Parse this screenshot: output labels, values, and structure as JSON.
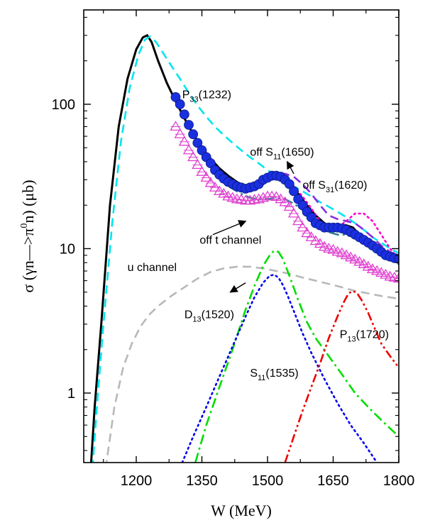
{
  "chart_data": {
    "type": "line",
    "xlabel": "W (MeV)",
    "ylabel_parts": [
      "σ (γn",
      "—>π",
      "0",
      "n) (μb)"
    ],
    "xlim": [
      1080,
      1800
    ],
    "ylim": [
      0.33,
      450
    ],
    "yscale": "log",
    "xticks": [
      1200,
      1350,
      1500,
      1650,
      1800
    ],
    "xtick_labels": [
      "1200",
      "1350",
      "1500",
      "1650",
      "1800"
    ],
    "yticks": [
      1,
      10,
      100
    ],
    "ytick_labels": [
      "1",
      "10",
      "100"
    ],
    "grid": false,
    "legend": "none",
    "colors": {
      "full": "#000000",
      "p33": "#00e5ee",
      "off_s11_1650": "#8a2be2",
      "off_s31_1620": "#ff00cc",
      "off_t": "#3a7f9a",
      "u_channel": "#b8b8b8",
      "d13": "#00dd00",
      "s11_1535": "#0000ee",
      "p13": "#ee0000",
      "data_circles": "#1a2fe0",
      "data_triangles": "#e040d0"
    },
    "series": [
      {
        "key": "full",
        "style": "solid",
        "x": [
          1096,
          1105,
          1120,
          1140,
          1160,
          1180,
          1200,
          1215,
          1225,
          1235,
          1250,
          1270,
          1290,
          1310,
          1330,
          1350,
          1370,
          1390,
          1410,
          1430,
          1450,
          1470,
          1480,
          1490,
          1500,
          1510,
          1520,
          1530,
          1540,
          1555,
          1570,
          1590,
          1610,
          1630,
          1650,
          1665,
          1680,
          1695,
          1710,
          1730,
          1750,
          1770,
          1800
        ],
        "y": [
          0.3,
          0.8,
          3,
          20,
          70,
          150,
          240,
          290,
          300,
          270,
          200,
          140,
          105,
          80,
          62,
          50,
          42,
          36,
          32,
          29,
          27,
          26,
          26.5,
          28,
          30,
          32,
          33,
          32.5,
          31,
          28,
          24,
          20,
          17,
          15,
          14,
          14.5,
          14.5,
          14,
          12.5,
          11,
          10,
          9.2,
          8.7
        ]
      },
      {
        "key": "p33",
        "style": "dashed",
        "x": [
          1100,
          1110,
          1125,
          1145,
          1165,
          1185,
          1205,
          1220,
          1232,
          1245,
          1260,
          1280,
          1300,
          1320,
          1340,
          1360,
          1380,
          1400,
          1420,
          1440,
          1460,
          1480,
          1500,
          1520,
          1540,
          1560,
          1580,
          1600,
          1620,
          1640,
          1660,
          1680,
          1700,
          1720,
          1740,
          1760,
          1780,
          1800
        ],
        "y": [
          0.3,
          0.8,
          3,
          15,
          55,
          130,
          220,
          280,
          295,
          270,
          230,
          185,
          150,
          120,
          98,
          82,
          70,
          61,
          54,
          48,
          43,
          39,
          35,
          32,
          29.5,
          27,
          25,
          23,
          21,
          19.5,
          18,
          16.5,
          15,
          13.5,
          12,
          11,
          10,
          9.3
        ]
      },
      {
        "key": "off_s11_1650",
        "style": "dashed",
        "x": [
          1480,
          1500,
          1520,
          1540,
          1560,
          1580,
          1600,
          1620,
          1640,
          1660,
          1680,
          1700,
          1720,
          1740,
          1760,
          1780,
          1800
        ],
        "y": [
          26.5,
          30,
          33,
          33,
          31.5,
          28,
          24,
          20,
          17,
          16,
          15.5,
          15,
          13.5,
          12,
          10.5,
          9.5,
          8.8
        ]
      },
      {
        "key": "off_s31_1620",
        "style": "dotted",
        "x": [
          1560,
          1580,
          1600,
          1620,
          1640,
          1660,
          1680,
          1700,
          1720,
          1740,
          1760,
          1780,
          1800
        ],
        "y": [
          27,
          23,
          19,
          15.5,
          14,
          14,
          15.5,
          17.5,
          17.5,
          15.5,
          12.5,
          10,
          8.5
        ]
      },
      {
        "key": "off_t",
        "style": "dashdot",
        "x": [
          1380,
          1400,
          1420,
          1440,
          1460,
          1480,
          1500,
          1520,
          1540,
          1560,
          1580,
          1600,
          1620,
          1640,
          1660,
          1680,
          1700,
          1720,
          1740,
          1760,
          1780,
          1800
        ],
        "y": [
          33,
          29,
          26,
          24,
          22.5,
          22,
          22,
          22.5,
          22,
          20.5,
          18.5,
          16,
          14,
          13,
          12.5,
          12.5,
          12,
          11,
          10,
          9,
          8.3,
          7.8
        ]
      },
      {
        "key": "u_channel",
        "style": "dashed",
        "x": [
          1130,
          1150,
          1170,
          1190,
          1210,
          1230,
          1250,
          1280,
          1310,
          1340,
          1370,
          1400,
          1430,
          1460,
          1490,
          1520,
          1550,
          1580,
          1610,
          1640,
          1670,
          1700,
          1730,
          1760,
          1800
        ],
        "y": [
          0.3,
          0.8,
          1.5,
          2.2,
          2.9,
          3.5,
          4.0,
          4.7,
          5.4,
          6.2,
          6.9,
          7.3,
          7.5,
          7.5,
          7.3,
          7.0,
          6.7,
          6.3,
          6.0,
          5.7,
          5.4,
          5.1,
          4.9,
          4.7,
          4.5
        ]
      },
      {
        "key": "d13",
        "style": "dashdot",
        "x": [
          1335,
          1360,
          1390,
          1420,
          1450,
          1470,
          1490,
          1505,
          1515,
          1525,
          1535,
          1550,
          1570,
          1590,
          1610,
          1640,
          1670,
          1700,
          1730,
          1760,
          1800
        ],
        "y": [
          0.33,
          0.6,
          1.1,
          2.0,
          3.8,
          5.5,
          7.6,
          9.0,
          9.7,
          9.5,
          8.5,
          6.5,
          4.4,
          3.1,
          2.4,
          1.8,
          1.35,
          1.0,
          0.8,
          0.65,
          0.5
        ]
      },
      {
        "key": "s11_1535",
        "style": "dotted",
        "x": [
          1305,
          1330,
          1360,
          1390,
          1420,
          1450,
          1470,
          1490,
          1505,
          1515,
          1525,
          1535,
          1545,
          1560,
          1580,
          1600,
          1630,
          1660,
          1690,
          1720,
          1750
        ],
        "y": [
          0.33,
          0.5,
          0.8,
          1.3,
          2.1,
          3.4,
          4.6,
          5.8,
          6.5,
          6.6,
          6.3,
          5.6,
          4.8,
          3.7,
          2.6,
          1.9,
          1.25,
          0.85,
          0.6,
          0.45,
          0.33
        ]
      },
      {
        "key": "p13",
        "style": "dashdotdot",
        "x": [
          1540,
          1560,
          1580,
          1600,
          1620,
          1640,
          1660,
          1675,
          1685,
          1695,
          1705,
          1715,
          1730,
          1745,
          1760,
          1780,
          1800
        ],
        "y": [
          0.33,
          0.5,
          0.75,
          1.1,
          1.6,
          2.4,
          3.4,
          4.3,
          4.9,
          5.1,
          4.9,
          4.4,
          3.6,
          2.8,
          2.2,
          1.8,
          1.5
        ]
      }
    ],
    "markers": [
      {
        "key": "data_circles",
        "shape": "circle",
        "x": [
          1290,
          1300,
          1310,
          1320,
          1330,
          1340,
          1350,
          1360,
          1370,
          1380,
          1390,
          1400,
          1410,
          1420,
          1430,
          1440,
          1450,
          1460,
          1470,
          1480,
          1490,
          1500,
          1510,
          1520,
          1530,
          1540,
          1550,
          1560,
          1570,
          1580,
          1590,
          1600,
          1610,
          1620,
          1630,
          1640,
          1650,
          1660,
          1670,
          1680,
          1690,
          1700,
          1710,
          1720,
          1730,
          1740,
          1750,
          1760,
          1770,
          1780,
          1790,
          1800
        ],
        "y": [
          112,
          100,
          85,
          72,
          62,
          54,
          48,
          43,
          39,
          35,
          32.5,
          30.5,
          29,
          28,
          27,
          26.5,
          26,
          26.5,
          27,
          28,
          30,
          31,
          32,
          32,
          31.5,
          30,
          28,
          25,
          22,
          20,
          18,
          16.5,
          15,
          14.5,
          14,
          14,
          14,
          14,
          13.8,
          13.5,
          13,
          12.5,
          12,
          11.5,
          11,
          10.5,
          10,
          9.5,
          9,
          8.8,
          8.6,
          8.5
        ]
      },
      {
        "key": "data_triangles",
        "shape": "triangle",
        "x": [
          1290,
          1300,
          1310,
          1320,
          1330,
          1340,
          1350,
          1360,
          1370,
          1380,
          1390,
          1400,
          1410,
          1420,
          1430,
          1440,
          1450,
          1460,
          1470,
          1480,
          1490,
          1500,
          1510,
          1520,
          1530,
          1540,
          1550,
          1560,
          1570,
          1580,
          1590,
          1600,
          1610,
          1620,
          1630,
          1640,
          1650,
          1660,
          1670,
          1680,
          1690,
          1700,
          1710,
          1720,
          1730,
          1740,
          1750,
          1760,
          1770,
          1780,
          1790,
          1800
        ],
        "y": [
          70,
          62,
          55,
          48,
          43,
          38,
          34,
          31,
          28.5,
          26.5,
          25,
          24,
          23,
          22.5,
          22,
          21.8,
          21.5,
          21.5,
          21.8,
          22,
          22.5,
          23,
          23,
          22.8,
          22,
          21,
          19.5,
          17.5,
          15.5,
          14,
          12.8,
          12,
          11.3,
          10.8,
          10.3,
          10,
          9.8,
          9.5,
          9.3,
          9,
          8.7,
          8.4,
          8.1,
          7.8,
          7.5,
          7.2,
          7,
          6.8,
          6.6,
          6.4,
          6.3,
          6.2
        ]
      }
    ],
    "annotations": [
      {
        "text": "P",
        "sub": "33",
        "rest": "(1232)",
        "at": [
          1305,
          110
        ]
      },
      {
        "text": "off S",
        "sub": "11",
        "rest": "(1650)",
        "at": [
          1460,
          44
        ]
      },
      {
        "text": "off S",
        "sub": "31",
        "rest": "(1620)",
        "at": [
          1580,
          26
        ]
      },
      {
        "text": "off t channel",
        "sub": "",
        "rest": "",
        "at": [
          1345,
          10.8
        ]
      },
      {
        "text": "u channel",
        "sub": "",
        "rest": "",
        "at": [
          1180,
          7.0
        ]
      },
      {
        "text": "D",
        "sub": "13",
        "rest": "(1520)",
        "at": [
          1310,
          3.3
        ]
      },
      {
        "text": "S",
        "sub": "11",
        "rest": "(1535)",
        "at": [
          1460,
          1.3
        ]
      },
      {
        "text": "P",
        "sub": "13",
        "rest": "(1720)",
        "at": [
          1665,
          2.4
        ]
      }
    ],
    "arrows": [
      {
        "from": [
          1560,
          33
        ],
        "to": [
          1545,
          40
        ]
      },
      {
        "from": [
          1375,
          12.5
        ],
        "to": [
          1450,
          15.5
        ]
      },
      {
        "from": [
          1450,
          5.8
        ],
        "to": [
          1415,
          5.0
        ]
      }
    ]
  }
}
